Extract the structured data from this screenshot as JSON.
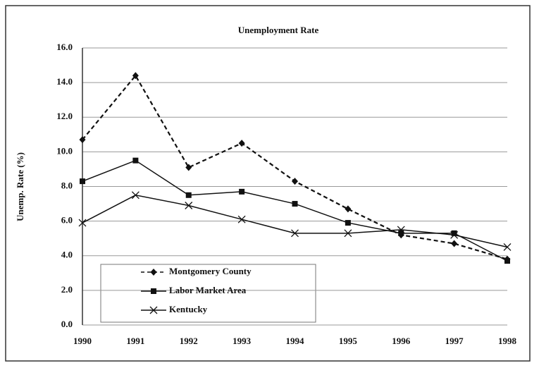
{
  "chart_data": {
    "type": "line",
    "title": "Unemployment Rate",
    "y_label": "Unemp. Rate (%)",
    "categories": [
      "1990",
      "1991",
      "1992",
      "1993",
      "1994",
      "1995",
      "1996",
      "1997",
      "1998"
    ],
    "series": [
      {
        "name": "Montgomery County",
        "color": "#111111",
        "dashed": true,
        "marker": "diamond",
        "values": [
          10.7,
          14.4,
          9.1,
          10.5,
          8.3,
          6.7,
          5.2,
          4.7,
          3.8
        ]
      },
      {
        "name": "Labor Market Area",
        "color": "#111111",
        "dashed": false,
        "marker": "square",
        "values": [
          8.3,
          9.5,
          7.5,
          7.7,
          7.0,
          5.9,
          5.3,
          5.3,
          3.7
        ]
      },
      {
        "name": "Kentucky",
        "color": "#111111",
        "dashed": false,
        "marker": "x",
        "values": [
          5.9,
          7.5,
          6.9,
          6.1,
          5.3,
          5.3,
          5.5,
          5.2,
          4.5
        ]
      }
    ],
    "ylim": [
      0,
      16
    ],
    "yticks": [
      {
        "value": 0,
        "label": "0.0"
      },
      {
        "value": 2,
        "label": "2.0"
      },
      {
        "value": 4,
        "label": "4.0"
      },
      {
        "value": 6,
        "label": "6.0"
      },
      {
        "value": 8,
        "label": "8.0"
      },
      {
        "value": 10,
        "label": "10.0"
      },
      {
        "value": 12,
        "label": "12.0"
      },
      {
        "value": 14,
        "label": "14.0"
      },
      {
        "value": 16,
        "label": "16.0"
      }
    ],
    "grid": true
  }
}
